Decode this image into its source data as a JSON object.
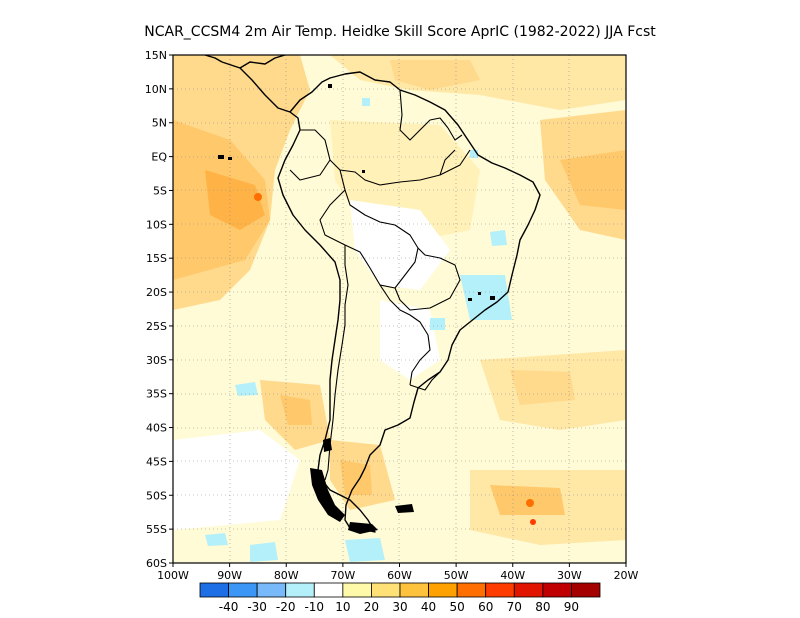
{
  "title": "NCAR_CCSM4  2m Air Temp. Heidke Skill Score AprIC (1982-2022) JJA Fcst",
  "lat_labels": [
    "15N",
    "10N",
    "5N",
    "EQ",
    "5S",
    "10S",
    "15S",
    "20S",
    "25S",
    "30S",
    "35S",
    "40S",
    "45S",
    "50S",
    "55S",
    "60S"
  ],
  "lon_labels": [
    "100W",
    "90W",
    "80W",
    "70W",
    "60W",
    "50W",
    "40W",
    "30W",
    "20W"
  ],
  "colorbar": {
    "colors": [
      "#1e6ee6",
      "#3c96f5",
      "#78b9fa",
      "#b4f0fa",
      "#ffffff",
      "#fffaaa",
      "#ffe178",
      "#ffc23d",
      "#ffa100",
      "#ff6e00",
      "#ff3c00",
      "#e11400",
      "#c00000",
      "#a50000"
    ],
    "labels": [
      "-40",
      "-30",
      "-20",
      "-10",
      "10",
      "20",
      "30",
      "40",
      "50",
      "60",
      "70",
      "80",
      "90"
    ]
  },
  "map": {
    "lon_range": [
      -100,
      -20
    ],
    "lat_range": [
      -60,
      15
    ],
    "grid": "dotted",
    "land_outline": "South America with country borders"
  }
}
